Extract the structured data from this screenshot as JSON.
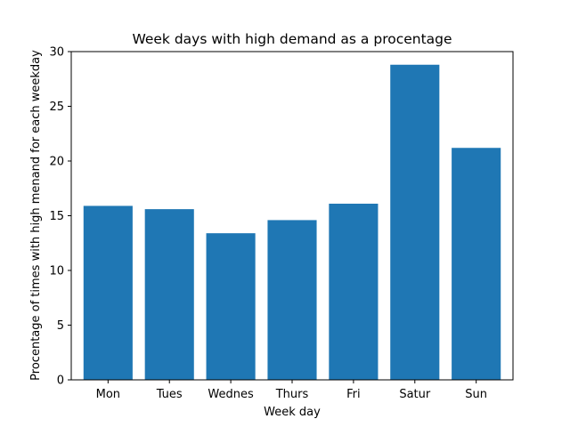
{
  "chart_data": {
    "type": "bar",
    "title": "Week days with high demand as a procentage",
    "xlabel": "Week day",
    "ylabel": "Procentage of times with high menand for each weekday",
    "categories": [
      "Mon",
      "Tues",
      "Wednes",
      "Thurs",
      "Fri",
      "Satur",
      "Sun"
    ],
    "values": [
      15.9,
      15.6,
      13.4,
      14.6,
      16.1,
      28.8,
      21.2
    ],
    "ylim": [
      0,
      30
    ],
    "yticks": [
      "0",
      "5",
      "10",
      "15",
      "20",
      "25",
      "30"
    ],
    "bar_color": "#1f77b4",
    "grid": false,
    "legend": "none"
  }
}
